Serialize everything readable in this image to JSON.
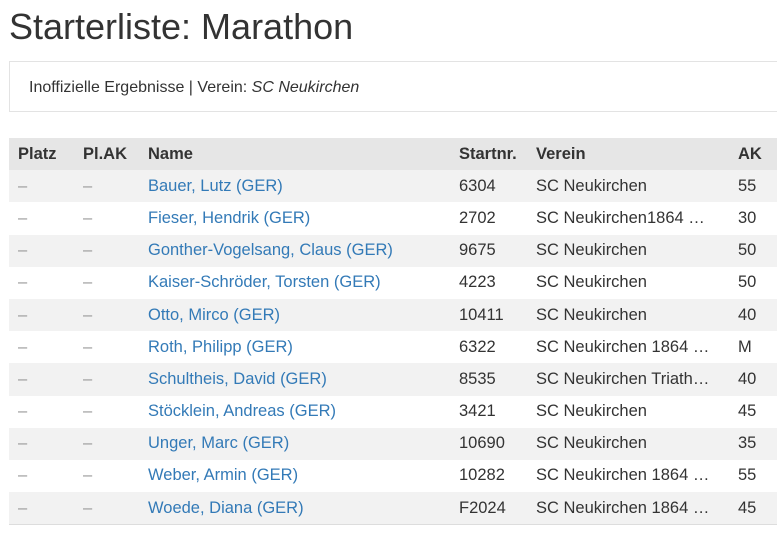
{
  "page": {
    "title": "Starterliste: Marathon"
  },
  "info": {
    "prefix": "Inoffizielle Ergebnisse | Verein: ",
    "club": "SC Neukirchen"
  },
  "table": {
    "headers": [
      "Platz",
      "Pl.AK",
      "Name",
      "Startnr.",
      "Verein",
      "AK"
    ],
    "rows": [
      {
        "platz": "–",
        "plak": "–",
        "name": "Bauer, Lutz (GER)",
        "startnr": "6304",
        "verein": "SC Neukirchen",
        "ak": "55"
      },
      {
        "platz": "–",
        "plak": "–",
        "name": "Fieser, Hendrik (GER)",
        "startnr": "2702",
        "verein": "SC Neukirchen1864 …",
        "ak": "30"
      },
      {
        "platz": "–",
        "plak": "–",
        "name": "Gonther-Vogelsang, Claus (GER)",
        "startnr": "9675",
        "verein": "SC Neukirchen",
        "ak": "50"
      },
      {
        "platz": "–",
        "plak": "–",
        "name": "Kaiser-Schröder, Torsten (GER)",
        "startnr": "4223",
        "verein": "SC Neukirchen",
        "ak": "50"
      },
      {
        "platz": "–",
        "plak": "–",
        "name": "Otto, Mirco (GER)",
        "startnr": "10411",
        "verein": "SC Neukirchen",
        "ak": "40"
      },
      {
        "platz": "–",
        "plak": "–",
        "name": "Roth, Philipp (GER)",
        "startnr": "6322",
        "verein": "SC Neukirchen 1864 …",
        "ak": "M"
      },
      {
        "platz": "–",
        "plak": "–",
        "name": "Schultheis, David (GER)",
        "startnr": "8535",
        "verein": "SC Neukirchen Triath…",
        "ak": "40"
      },
      {
        "platz": "–",
        "plak": "–",
        "name": "Stöcklein, Andreas (GER)",
        "startnr": "3421",
        "verein": "SC Neukirchen",
        "ak": "45"
      },
      {
        "platz": "–",
        "plak": "–",
        "name": "Unger, Marc (GER)",
        "startnr": "10690",
        "verein": "SC Neukirchen",
        "ak": "35"
      },
      {
        "platz": "–",
        "plak": "–",
        "name": "Weber, Armin (GER)",
        "startnr": "10282",
        "verein": "SC Neukirchen 1864 …",
        "ak": "55"
      },
      {
        "platz": "–",
        "plak": "–",
        "name": "Woede, Diana (GER)",
        "startnr": "F2024",
        "verein": "SC Neukirchen 1864 …",
        "ak": "45"
      }
    ]
  },
  "colors": {
    "link": "#337ab7",
    "header_bg": "#e6e6e6",
    "stripe_bg": "#f2f2f2",
    "text": "#333333"
  }
}
